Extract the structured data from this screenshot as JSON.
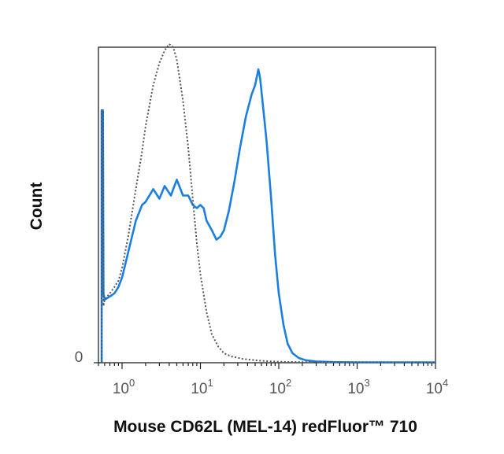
{
  "chart_data": {
    "type": "line",
    "title": "",
    "xlabel": "Mouse CD62L (MEL-14) redFluor™ 710",
    "ylabel": "Count",
    "x_scale": "log",
    "xlim": [
      0.5,
      10000
    ],
    "ylim": [
      0,
      100
    ],
    "x_ticks": [
      {
        "base": "10",
        "exp": "0",
        "value": 1
      },
      {
        "base": "10",
        "exp": "1",
        "value": 10
      },
      {
        "base": "10",
        "exp": "2",
        "value": 100
      },
      {
        "base": "10",
        "exp": "3",
        "value": 1000
      },
      {
        "base": "10",
        "exp": "4",
        "value": 10000
      }
    ],
    "y_ticks": [
      {
        "label": "0",
        "value": 0
      }
    ],
    "grid": false,
    "series": [
      {
        "style": "solid",
        "color": "#1a7fe0",
        "points": [
          [
            0.55,
            0
          ],
          [
            0.55,
            80
          ],
          [
            0.57,
            80
          ],
          [
            0.58,
            22
          ],
          [
            0.6,
            20
          ],
          [
            0.7,
            21
          ],
          [
            0.8,
            22
          ],
          [
            0.9,
            24
          ],
          [
            1.0,
            27
          ],
          [
            1.2,
            35
          ],
          [
            1.5,
            45
          ],
          [
            1.8,
            50
          ],
          [
            2.0,
            51
          ],
          [
            2.5,
            55
          ],
          [
            3.0,
            52
          ],
          [
            3.5,
            56
          ],
          [
            4.2,
            53
          ],
          [
            5.0,
            58
          ],
          [
            6.0,
            53
          ],
          [
            7.0,
            53
          ],
          [
            8.0,
            50
          ],
          [
            9.0,
            49
          ],
          [
            10.0,
            50
          ],
          [
            11.0,
            49
          ],
          [
            12.0,
            45
          ],
          [
            14.0,
            42
          ],
          [
            16.0,
            39
          ],
          [
            18.0,
            40
          ],
          [
            20.0,
            42
          ],
          [
            23.0,
            48
          ],
          [
            27.0,
            57
          ],
          [
            32.0,
            68
          ],
          [
            38.0,
            78
          ],
          [
            45.0,
            85
          ],
          [
            50.0,
            88
          ],
          [
            55.0,
            93
          ],
          [
            58.0,
            90
          ],
          [
            62.0,
            83
          ],
          [
            70.0,
            70
          ],
          [
            80.0,
            52
          ],
          [
            90.0,
            34
          ],
          [
            100.0,
            22
          ],
          [
            115.0,
            12
          ],
          [
            130.0,
            6
          ],
          [
            150.0,
            3
          ],
          [
            180.0,
            1.5
          ],
          [
            220.0,
            0.8
          ],
          [
            300.0,
            0.4
          ],
          [
            500.0,
            0.2
          ],
          [
            1000.0,
            0.1
          ],
          [
            10000.0,
            0.1
          ]
        ]
      },
      {
        "style": "dotted",
        "color": "#555555",
        "points": [
          [
            0.55,
            0
          ],
          [
            0.55,
            80
          ],
          [
            0.57,
            80
          ],
          [
            0.58,
            18
          ],
          [
            0.6,
            20
          ],
          [
            0.7,
            22
          ],
          [
            0.8,
            24
          ],
          [
            0.9,
            26
          ],
          [
            1.0,
            30
          ],
          [
            1.2,
            40
          ],
          [
            1.5,
            55
          ],
          [
            1.8,
            67
          ],
          [
            2.0,
            75
          ],
          [
            2.5,
            88
          ],
          [
            3.0,
            95
          ],
          [
            3.5,
            99
          ],
          [
            4.0,
            101
          ],
          [
            4.5,
            100
          ],
          [
            5.0,
            96
          ],
          [
            6.0,
            83
          ],
          [
            7.0,
            68
          ],
          [
            8.0,
            52
          ],
          [
            9.0,
            38
          ],
          [
            10.0,
            28
          ],
          [
            12.0,
            16
          ],
          [
            14.0,
            9
          ],
          [
            17.0,
            5
          ],
          [
            20.0,
            3
          ],
          [
            25.0,
            2
          ],
          [
            35.0,
            1.2
          ],
          [
            60.0,
            0.6
          ],
          [
            100.0,
            0.3
          ],
          [
            200.0,
            0.2
          ],
          [
            10000.0,
            0.1
          ]
        ]
      }
    ]
  }
}
